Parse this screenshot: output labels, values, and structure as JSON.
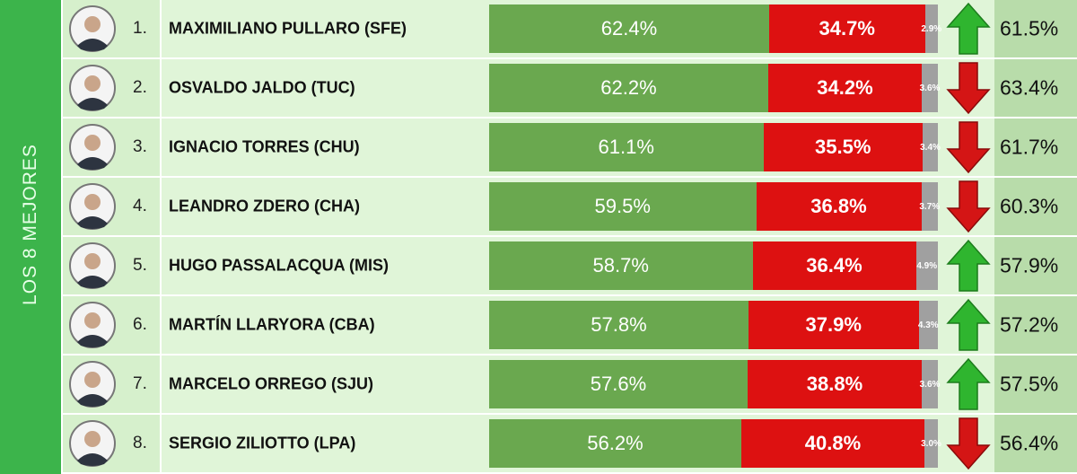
{
  "side_label": "LOS 8 MEJORES",
  "rows": [
    {
      "rank": "1.",
      "name": "MAXIMILIANO PULLARO (SFE)",
      "values": [
        62.4,
        34.7,
        2.9
      ],
      "value_labels": [
        "62.4%",
        "34.7%",
        "2.9%"
      ],
      "trend": "up",
      "previous": "61.5%"
    },
    {
      "rank": "2.",
      "name": "OSVALDO JALDO (TUC)",
      "values": [
        62.2,
        34.2,
        3.6
      ],
      "value_labels": [
        "62.2%",
        "34.2%",
        "3.6%"
      ],
      "trend": "down",
      "previous": "63.4%"
    },
    {
      "rank": "3.",
      "name": "IGNACIO TORRES (CHU)",
      "values": [
        61.1,
        35.5,
        3.4
      ],
      "value_labels": [
        "61.1%",
        "35.5%",
        "3.4%"
      ],
      "trend": "down",
      "previous": "61.7%"
    },
    {
      "rank": "4.",
      "name": "LEANDRO ZDERO (CHA)",
      "values": [
        59.5,
        36.8,
        3.7
      ],
      "value_labels": [
        "59.5%",
        "36.8%",
        "3.7%"
      ],
      "trend": "down",
      "previous": "60.3%"
    },
    {
      "rank": "5.",
      "name": "HUGO PASSALACQUA (MIS)",
      "values": [
        58.7,
        36.4,
        4.9
      ],
      "value_labels": [
        "58.7%",
        "36.4%",
        "4.9%"
      ],
      "trend": "up",
      "previous": "57.9%"
    },
    {
      "rank": "6.",
      "name": "MARTÍN LLARYORA (CBA)",
      "values": [
        57.8,
        37.9,
        4.3
      ],
      "value_labels": [
        "57.8%",
        "37.9%",
        "4.3%"
      ],
      "trend": "up",
      "previous": "57.2%"
    },
    {
      "rank": "7.",
      "name": "MARCELO ORREGO (SJU)",
      "values": [
        57.6,
        38.8,
        3.6
      ],
      "value_labels": [
        "57.6%",
        "38.8%",
        "3.6%"
      ],
      "trend": "up",
      "previous": "57.5%"
    },
    {
      "rank": "8.",
      "name": "SERGIO ZILIOTTO (LPA)",
      "values": [
        56.2,
        40.8,
        3.0
      ],
      "value_labels": [
        "56.2%",
        "40.8%",
        "3.0%"
      ],
      "trend": "down",
      "previous": "56.4%"
    }
  ],
  "segment_colors": [
    "#6aa84f",
    "#dd1111",
    "#a0a0a0"
  ]
}
